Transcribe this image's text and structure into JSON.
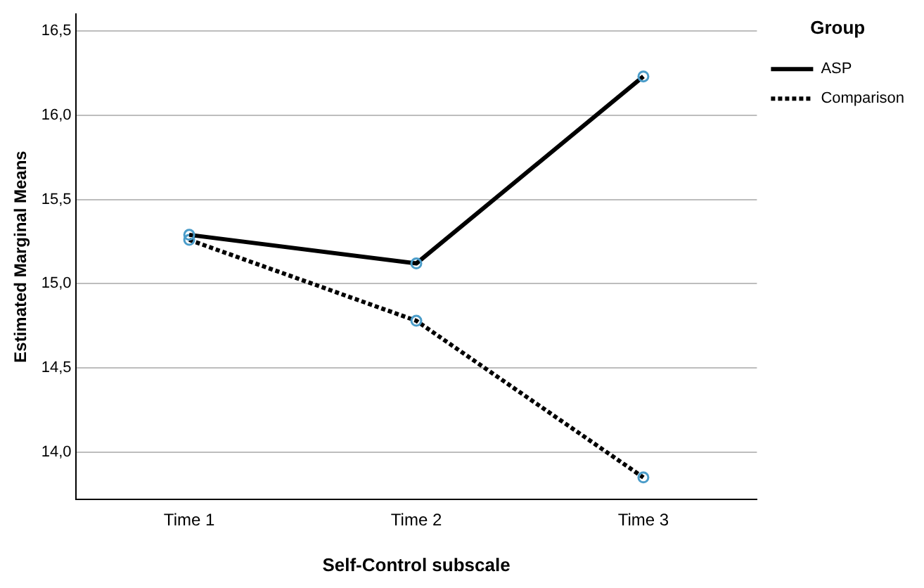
{
  "chart_data": {
    "type": "line",
    "xlabel": "Self-Control subscale",
    "ylabel": "Estimated Marginal Means",
    "legend_title": "Group",
    "categories": [
      "Time 1",
      "Time 2",
      "Time 3"
    ],
    "series": [
      {
        "name": "ASP",
        "color": "#000000",
        "line_style": "solid",
        "values": [
          15.29,
          15.12,
          16.23
        ]
      },
      {
        "name": "Comparison",
        "color": "#000000",
        "line_style": "dotted",
        "values": [
          15.26,
          14.78,
          13.85
        ]
      }
    ],
    "ylim": [
      13.72,
      16.6
    ],
    "yticks": [
      {
        "value": 14.0,
        "label": "14,0"
      },
      {
        "value": 14.5,
        "label": "14,5"
      },
      {
        "value": 15.0,
        "label": "15,0"
      },
      {
        "value": 15.5,
        "label": "15,5"
      },
      {
        "value": 16.0,
        "label": "16,0"
      },
      {
        "value": 16.5,
        "label": "16,5"
      }
    ],
    "grid": "y",
    "legend": "top right",
    "marker": "circle"
  }
}
